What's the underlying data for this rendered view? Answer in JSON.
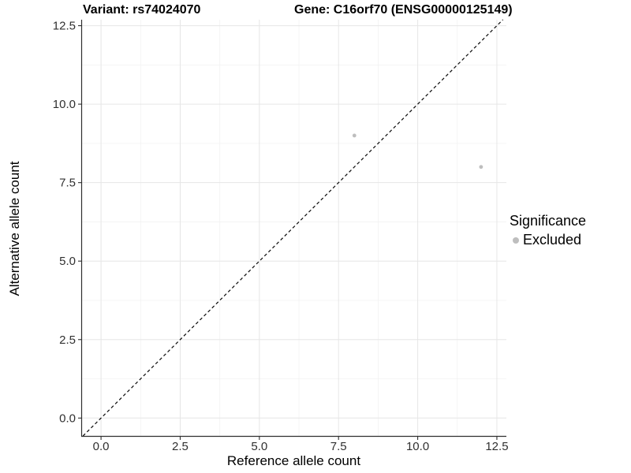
{
  "chart_data": {
    "type": "scatter",
    "title_left": "Variant: rs74024070",
    "title_right": "Gene: C16orf70 (ENSG00000125149)",
    "xlabel": "Reference allele count",
    "ylabel": "Alternative allele count",
    "xticks": [
      0.0,
      2.5,
      5.0,
      7.5,
      10.0,
      12.5
    ],
    "yticks": [
      0.0,
      2.5,
      5.0,
      7.5,
      10.0,
      12.5
    ],
    "xtick_labels": [
      "0.0",
      "2.5",
      "5.0",
      "7.5",
      "10.0",
      "12.5"
    ],
    "ytick_labels": [
      "0.0",
      "2.5",
      "5.0",
      "7.5",
      "10.0",
      "12.5"
    ],
    "xlim": [
      -0.625,
      12.8
    ],
    "ylim": [
      -0.57,
      12.69
    ],
    "grid": true,
    "minor_grid_step": 1.25,
    "series": [
      {
        "name": "Excluded",
        "color": "#bebebe",
        "points": [
          {
            "x": 8,
            "y": 9
          },
          {
            "x": 12,
            "y": 8
          }
        ]
      }
    ],
    "reference_line": {
      "type": "identity",
      "slope": 1,
      "intercept": 0,
      "style": "dashed",
      "color": "#111111"
    },
    "legend": {
      "title": "Significance",
      "position": "right",
      "items": [
        {
          "label": "Excluded",
          "color": "#bebebe"
        }
      ]
    },
    "colors": {
      "major_grid": "#e6e6e6",
      "minor_grid": "#f2f2f2",
      "axis_line": "#2f2f2f",
      "tick_label": "#303030",
      "point": "#bebebe"
    }
  }
}
